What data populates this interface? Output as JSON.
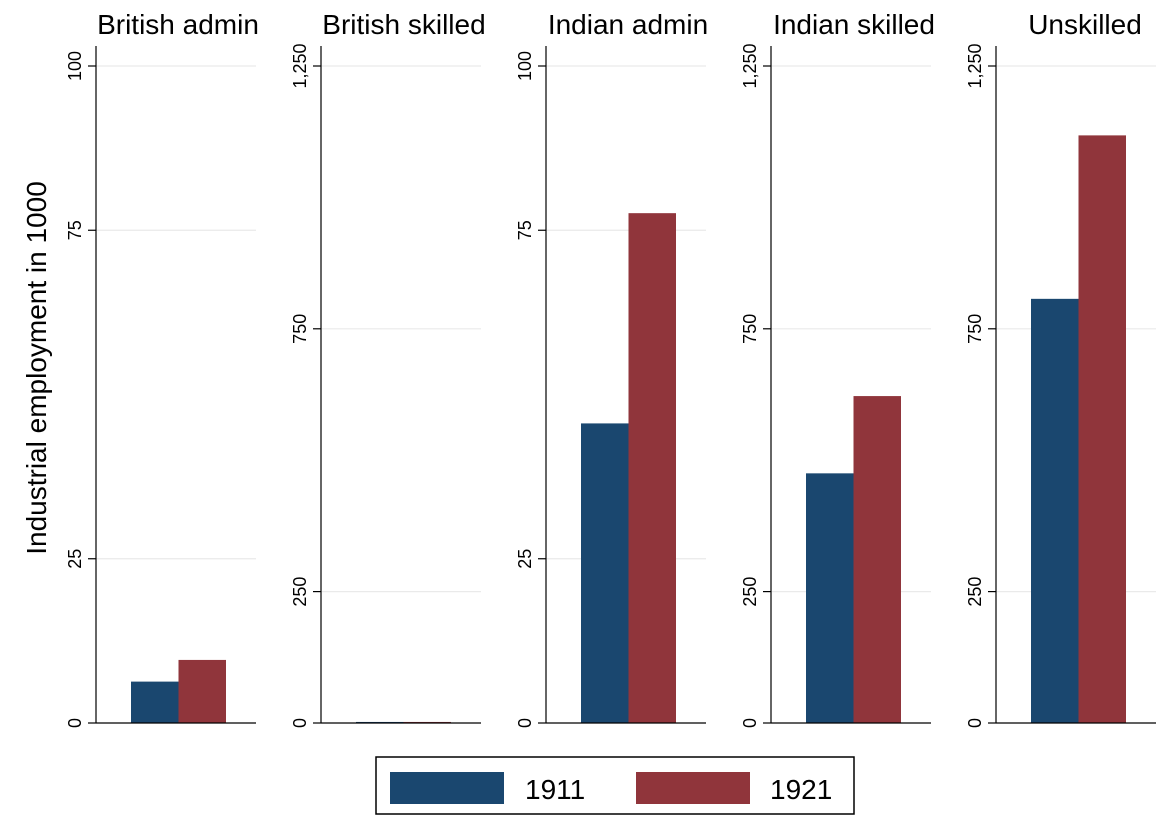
{
  "ylabel": "Industrial employment in 1000",
  "colors": {
    "1911": "#1a476f",
    "1921": "#90353b",
    "grid": "#eaeaea",
    "axis": "#000000"
  },
  "chart_data": [
    {
      "type": "bar",
      "title": "British admin",
      "ylim": [
        0,
        100
      ],
      "yticks": [
        0,
        25,
        75,
        100
      ],
      "ytick_labels": [
        "0",
        "25",
        "75",
        "100"
      ],
      "series": [
        {
          "name": "1911",
          "values": [
            6.3
          ]
        },
        {
          "name": "1921",
          "values": [
            9.6
          ]
        }
      ]
    },
    {
      "type": "bar",
      "title": "British skilled",
      "ylim": [
        0,
        1250
      ],
      "yticks": [
        0,
        250,
        750,
        1250
      ],
      "ytick_labels": [
        "0",
        "250",
        "750",
        "1,250"
      ],
      "series": [
        {
          "name": "1911",
          "values": [
            2
          ]
        },
        {
          "name": "1921",
          "values": [
            2
          ]
        }
      ]
    },
    {
      "type": "bar",
      "title": "Indian admin",
      "ylim": [
        0,
        100
      ],
      "yticks": [
        0,
        25,
        75,
        100
      ],
      "ytick_labels": [
        "0",
        "25",
        "75",
        "100"
      ],
      "series": [
        {
          "name": "1911",
          "values": [
            45.6
          ]
        },
        {
          "name": "1921",
          "values": [
            77.6
          ]
        }
      ]
    },
    {
      "type": "bar",
      "title": "Indian skilled",
      "ylim": [
        0,
        1250
      ],
      "yticks": [
        0,
        250,
        750,
        1250
      ],
      "ytick_labels": [
        "0",
        "250",
        "750",
        "1,250"
      ],
      "series": [
        {
          "name": "1911",
          "values": [
            475
          ]
        },
        {
          "name": "1921",
          "values": [
            622
          ]
        }
      ]
    },
    {
      "type": "bar",
      "title": "Unskilled",
      "ylim": [
        0,
        1250
      ],
      "yticks": [
        0,
        250,
        750,
        1250
      ],
      "ytick_labels": [
        "0",
        "250",
        "750",
        "1,250"
      ],
      "series": [
        {
          "name": "1911",
          "values": [
            807
          ]
        },
        {
          "name": "1921",
          "values": [
            1118
          ]
        }
      ]
    }
  ],
  "legend": {
    "position": "bottom-center",
    "items": [
      {
        "label": "1911"
      },
      {
        "label": "1921"
      }
    ]
  }
}
